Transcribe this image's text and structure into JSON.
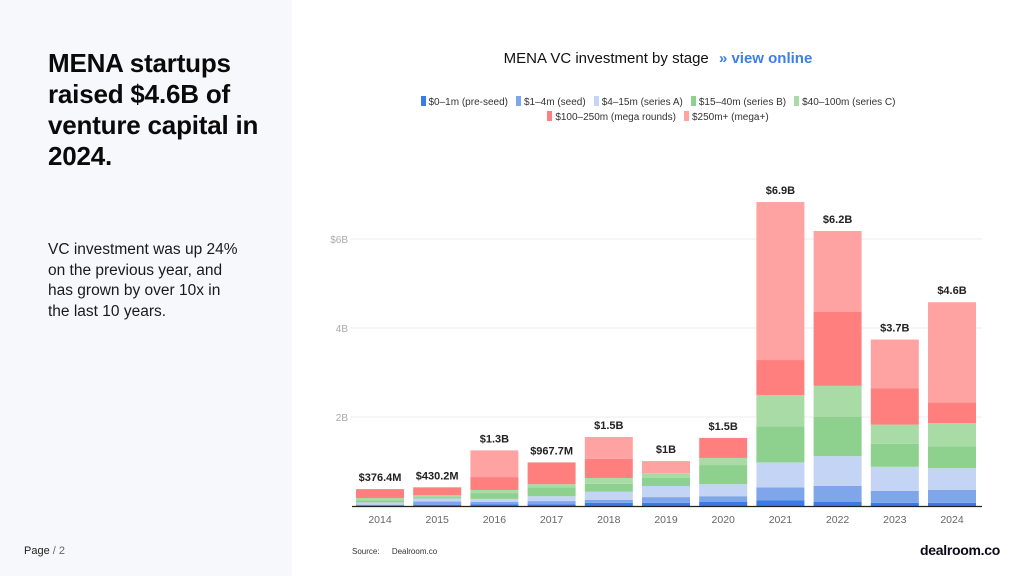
{
  "left_panel": {
    "headline": "MENA startups raised $4.6B of venture capital in 2024.",
    "subtext": "VC investment was up 24% on the previous year, and has grown by over 10x in the last 10 years.",
    "page_label": "Page",
    "page_number": "/ 2"
  },
  "chart_header": {
    "title": "MENA VC investment by stage",
    "link_arrow": "»",
    "link_label": "view online"
  },
  "footer": {
    "source_label": "Source:",
    "source_value": "Dealroom.co",
    "brand": "dealroom.co"
  },
  "chart_data": {
    "type": "bar",
    "stacked": true,
    "title": "MENA VC investment by stage",
    "xlabel": "",
    "ylabel": "",
    "ylim": [
      0,
      7
    ],
    "yticks": [
      {
        "value": 2,
        "label": "2B"
      },
      {
        "value": 4,
        "label": "4B"
      },
      {
        "value": 6,
        "label": "$6B"
      }
    ],
    "grid": true,
    "legend_position": "top-center",
    "categories": [
      "2014",
      "2015",
      "2016",
      "2017",
      "2018",
      "2019",
      "2020",
      "2021",
      "2022",
      "2023",
      "2024"
    ],
    "totals_labels": [
      "$376.4M",
      "$430.2M",
      "$1.3B",
      "$967.7M",
      "$1.5B",
      "$1B",
      "$1.5B",
      "$6.9B",
      "$6.2B",
      "$3.7B",
      "$4.6B"
    ],
    "units": "USD billions",
    "series": [
      {
        "name": "$0–1m (pre-seed)",
        "color": "#3a7be6",
        "values": [
          0.01,
          0.03,
          0.04,
          0.04,
          0.07,
          0.07,
          0.09,
          0.13,
          0.09,
          0.07,
          0.07
        ]
      },
      {
        "name": "$1–4m (seed)",
        "color": "#7fa6ea",
        "values": [
          0.02,
          0.07,
          0.05,
          0.07,
          0.07,
          0.13,
          0.13,
          0.29,
          0.36,
          0.27,
          0.29
        ]
      },
      {
        "name": "$4–15m (series A)",
        "color": "#c4d4f4",
        "values": [
          0.05,
          0.07,
          0.07,
          0.11,
          0.18,
          0.25,
          0.27,
          0.56,
          0.67,
          0.54,
          0.49
        ]
      },
      {
        "name": "$15–40m (series B)",
        "color": "#8ed08e",
        "values": [
          0.05,
          0.03,
          0.13,
          0.2,
          0.18,
          0.18,
          0.43,
          0.81,
          0.88,
          0.52,
          0.49
        ]
      },
      {
        "name": "$40–100m (series C)",
        "color": "#a9dba7",
        "values": [
          0.05,
          0.04,
          0.07,
          0.07,
          0.13,
          0.11,
          0.16,
          0.7,
          0.7,
          0.43,
          0.52
        ]
      },
      {
        "name": "$100–250m (mega rounds)",
        "color": "#ff7f7f",
        "values": [
          0.2,
          0.18,
          0.29,
          0.49,
          0.43,
          0.0,
          0.45,
          0.79,
          1.66,
          0.81,
          0.47
        ]
      },
      {
        "name": "$250m+ (mega+)",
        "color": "#ffa2a2",
        "values": [
          0.0,
          0.0,
          0.6,
          0.0,
          0.49,
          0.27,
          0.0,
          3.55,
          1.82,
          1.1,
          2.25
        ]
      }
    ]
  }
}
